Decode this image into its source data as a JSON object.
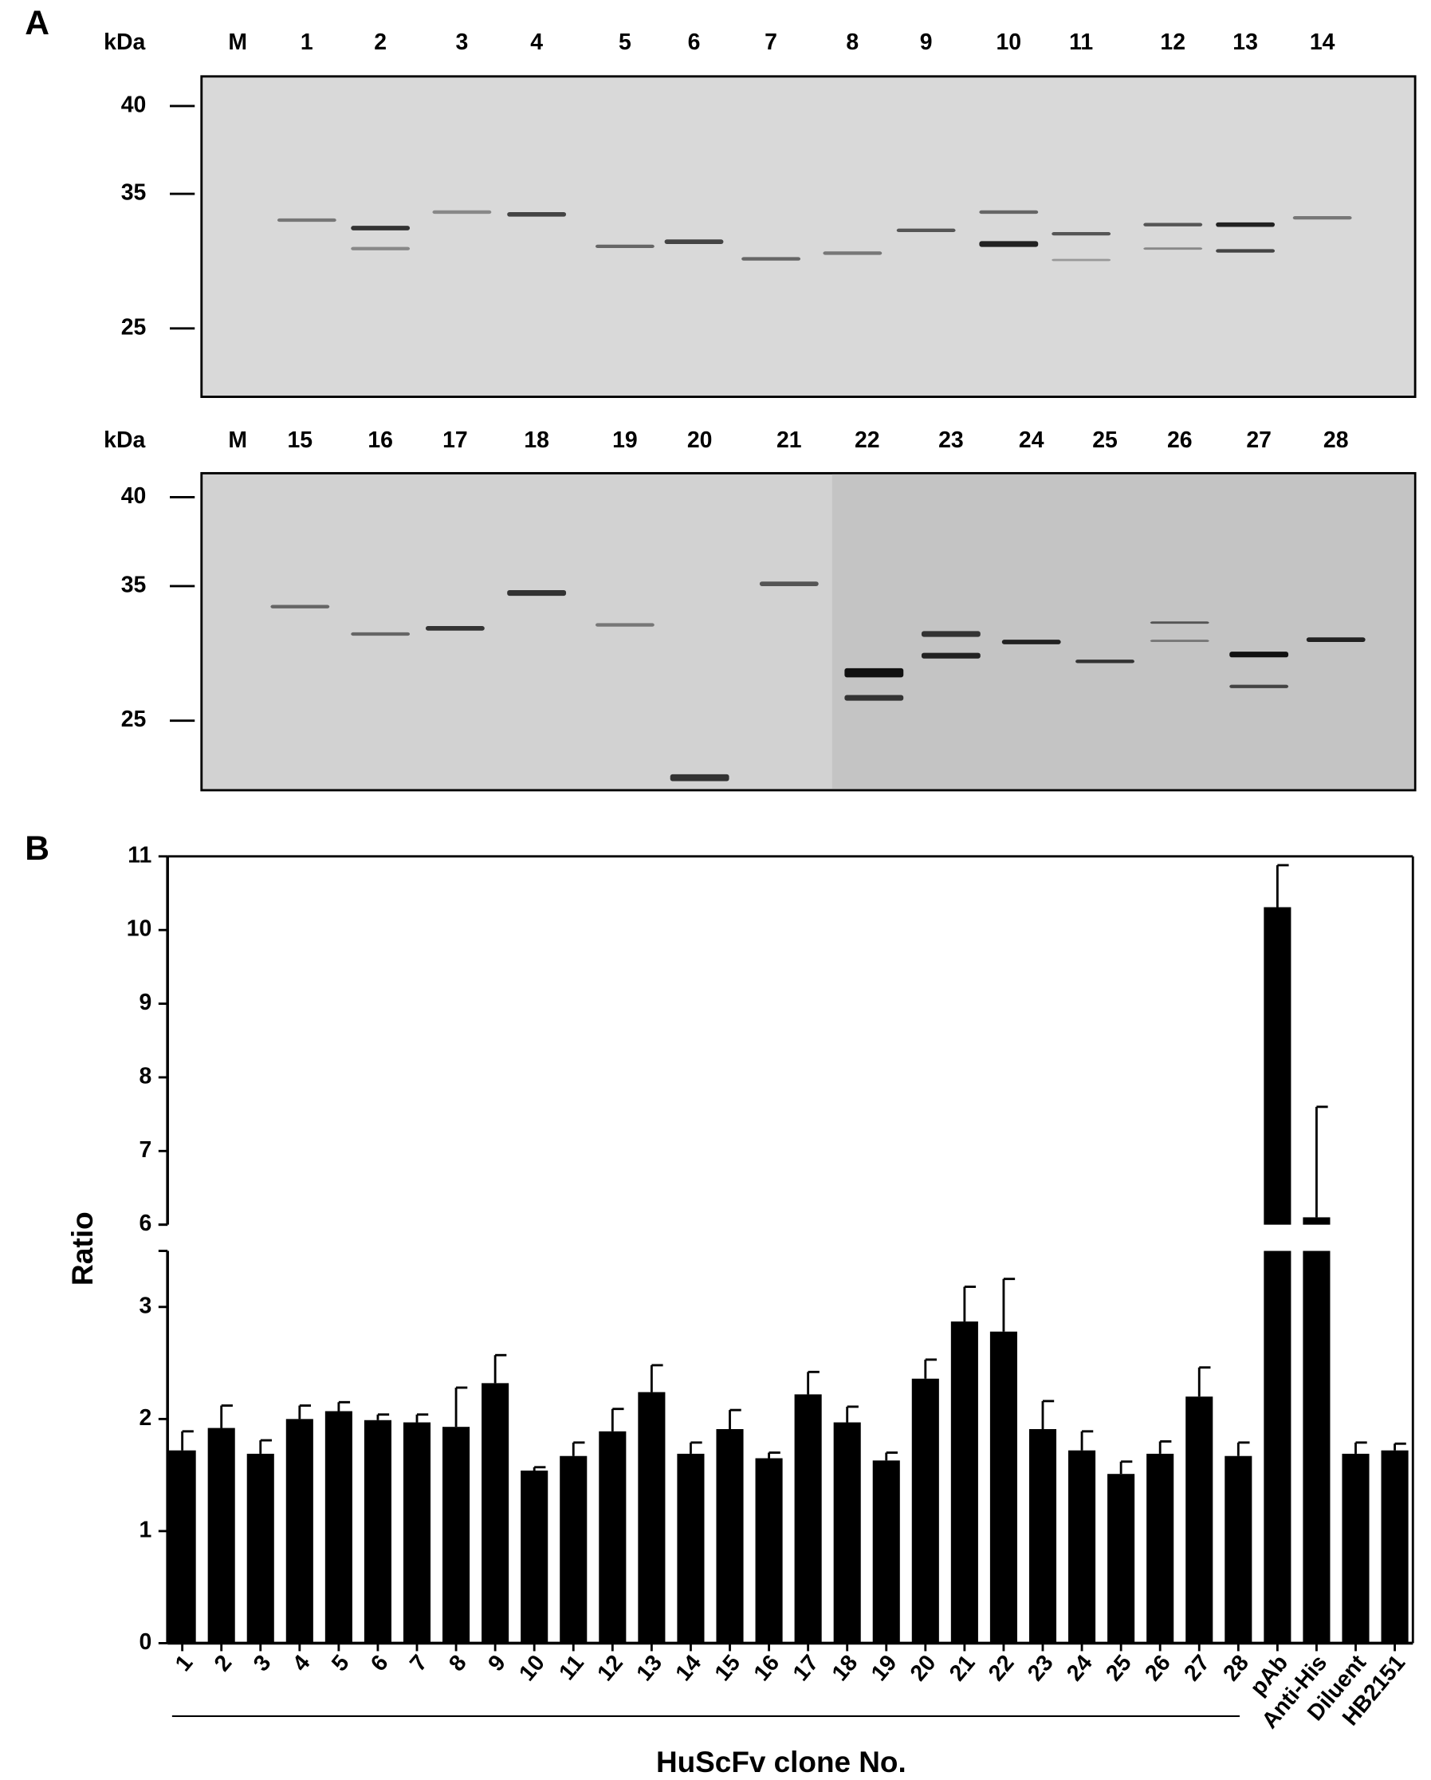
{
  "panel_a": {
    "label": "A",
    "top": {
      "unit": "kDa",
      "lanes": [
        "M",
        "1",
        "2",
        "3",
        "4",
        "5",
        "6",
        "7",
        "8",
        "9",
        "10",
        "11",
        "12",
        "13",
        "14"
      ],
      "markers": [
        "40",
        "35",
        "25"
      ]
    },
    "bottom": {
      "unit": "kDa",
      "lanes": [
        "M",
        "15",
        "16",
        "17",
        "18",
        "19",
        "20",
        "21",
        "22",
        "23",
        "24",
        "25",
        "26",
        "27",
        "28"
      ],
      "markers": [
        "40",
        "35",
        "25"
      ]
    }
  },
  "chart_data": {
    "type": "bar",
    "panel_label": "B",
    "y_label": "Ratio",
    "x_label": "HuScFv clone No.",
    "categories": [
      "1",
      "2",
      "3",
      "4",
      "5",
      "6",
      "7",
      "8",
      "9",
      "10",
      "11",
      "12",
      "13",
      "14",
      "15",
      "16",
      "17",
      "18",
      "19",
      "20",
      "21",
      "22",
      "23",
      "24",
      "25",
      "26",
      "27",
      "28",
      "pAb",
      "Anti-His",
      "Diluent",
      "HB2151"
    ],
    "values": [
      1.72,
      1.92,
      1.69,
      2.0,
      2.07,
      1.99,
      1.97,
      1.93,
      2.32,
      1.54,
      1.67,
      1.89,
      2.24,
      1.69,
      1.91,
      1.65,
      2.22,
      1.97,
      1.63,
      2.36,
      2.87,
      2.78,
      1.91,
      1.72,
      1.51,
      1.69,
      2.2,
      1.67,
      10.31,
      6.1,
      1.69,
      1.72
    ],
    "errors": [
      0.17,
      0.2,
      0.12,
      0.12,
      0.08,
      0.05,
      0.07,
      0.35,
      0.25,
      0.03,
      0.12,
      0.2,
      0.24,
      0.1,
      0.17,
      0.05,
      0.2,
      0.14,
      0.07,
      0.17,
      0.31,
      0.47,
      0.25,
      0.17,
      0.11,
      0.11,
      0.26,
      0.12,
      0.57,
      1.5,
      0.1,
      0.06
    ],
    "color": "#000000",
    "ylim": [
      0,
      11
    ],
    "y_break": [
      3.5,
      6
    ],
    "yticks": [
      0,
      1,
      2,
      3,
      6,
      7,
      8,
      9,
      10,
      11
    ]
  }
}
